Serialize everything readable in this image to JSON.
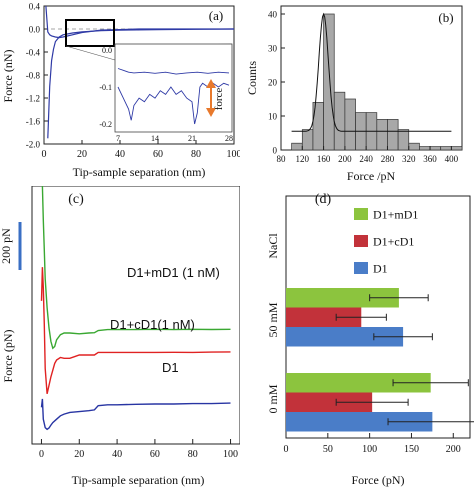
{
  "chart_data": [
    {
      "panel": "(a)",
      "type": "line",
      "xlabel": "Tip-sample separation (nm)",
      "ylabel": "Force (nN)",
      "xlim": [
        0,
        100
      ],
      "ylim": [
        -2.0,
        0.4
      ],
      "xticks": [
        0,
        20,
        40,
        60,
        80,
        100
      ],
      "yticks": [
        -2.0,
        -1.6,
        -1.2,
        -0.8,
        -0.4,
        0.0,
        0.4
      ],
      "ytick_labels": [
        "-2.0",
        "-1.6",
        "-1.2",
        "-0.8",
        "-0.4",
        "0.0",
        "0.4"
      ],
      "series": [
        {
          "x": [
            2,
            3,
            4,
            5,
            6,
            8,
            10,
            15,
            20,
            30,
            40,
            60,
            80,
            100
          ],
          "y": [
            -1.9,
            -1.0,
            -0.55,
            -0.35,
            -0.22,
            -0.14,
            -0.1,
            -0.07,
            -0.05,
            -0.03,
            -0.02,
            -0.01,
            -0.005,
            0.0
          ]
        },
        {
          "x": [
            1,
            2,
            3,
            4,
            6,
            8,
            10,
            15,
            20,
            30,
            50,
            100
          ],
          "y": [
            0.4,
            -0.05,
            -0.1,
            -0.12,
            -0.14,
            -0.15,
            -0.14,
            -0.1,
            -0.06,
            -0.02,
            0.0,
            0.0
          ]
        }
      ],
      "inset": {
        "xlim": [
          7,
          28
        ],
        "ylim": [
          -0.2,
          0.0
        ],
        "xticks": [
          7,
          14,
          21,
          28
        ],
        "yticks": [
          0.0,
          -0.1,
          -0.2
        ],
        "ytick_labels": [
          "0.0",
          "-0.1",
          "-0.2"
        ],
        "annotation": "force",
        "series": [
          {
            "x": [
              7,
              8,
              9,
              10,
              12,
              14,
              16,
              18,
              20,
              22,
              24,
              26,
              28
            ],
            "y": [
              -0.05,
              -0.055,
              -0.06,
              -0.062,
              -0.06,
              -0.063,
              -0.06,
              -0.065,
              -0.062,
              -0.06,
              -0.063,
              -0.06,
              -0.062
            ]
          },
          {
            "x": [
              7,
              8,
              9,
              9.5,
              10,
              11,
              12,
              13,
              14,
              15,
              16,
              17,
              18,
              19,
              20,
              21,
              21.5,
              22,
              22.5,
              23,
              24,
              25,
              26,
              27,
              28
            ],
            "y": [
              -0.1,
              -0.13,
              -0.16,
              -0.19,
              -0.15,
              -0.13,
              -0.14,
              -0.12,
              -0.13,
              -0.11,
              -0.12,
              -0.1,
              -0.12,
              -0.11,
              -0.13,
              -0.14,
              -0.2,
              -0.17,
              -0.1,
              -0.09,
              -0.1,
              -0.09,
              -0.1,
              -0.09,
              -0.095
            ]
          }
        ]
      }
    },
    {
      "panel": "(b)",
      "type": "bar",
      "xlabel": "Force /pN",
      "ylabel": "Counts",
      "xlim": [
        80,
        420
      ],
      "ylim": [
        0,
        40
      ],
      "xticks": [
        80,
        120,
        160,
        200,
        240,
        280,
        320,
        360,
        400
      ],
      "yticks": [
        0,
        10,
        20,
        30,
        40
      ],
      "bin_width": 20,
      "bin_starts": [
        100,
        120,
        140,
        160,
        180,
        200,
        220,
        240,
        260,
        280,
        300,
        320,
        340,
        360,
        380,
        400
      ],
      "values": [
        2,
        6,
        14,
        40,
        17,
        15,
        11,
        11,
        9,
        9,
        6,
        2,
        1,
        1,
        1,
        1
      ],
      "fit": {
        "center": 160,
        "sigma": 9,
        "amplitude": 34.5,
        "baseline": 5.5
      }
    },
    {
      "panel": "(c)",
      "type": "line",
      "xlabel": "Tip-sample separation (nm)",
      "ylabel": "Force (pN)",
      "xlim": [
        -5,
        105
      ],
      "xticks": [
        0,
        20,
        40,
        60,
        80,
        100
      ],
      "scale_bar": "200 pN",
      "series": [
        {
          "name": "D1+mD1 (1 nM)",
          "color": "#3aa832",
          "x": [
            0.5,
            1,
            1.5,
            2,
            3,
            4,
            5,
            6,
            7,
            8,
            10,
            12,
            15,
            20,
            25,
            28,
            30,
            35,
            40,
            50,
            60,
            70,
            80,
            90,
            100
          ],
          "y": [
            1200,
            1000,
            820,
            650,
            480,
            360,
            280,
            240,
            250,
            290,
            320,
            330,
            330,
            325,
            330,
            332,
            345,
            350,
            350,
            350,
            352,
            350,
            352,
            351,
            352
          ]
        },
        {
          "name": "D1+cD1(1 nM)",
          "color": "#e02222",
          "x": [
            0,
            0.5,
            1,
            1.5,
            2,
            3,
            4,
            5,
            6,
            7,
            8,
            10,
            12,
            15,
            18,
            20,
            25,
            28,
            30,
            35,
            40,
            50,
            60,
            70,
            80,
            90,
            100
          ],
          "y": [
            520,
            720,
            600,
            380,
            120,
            -30,
            20,
            70,
            110,
            150,
            170,
            185,
            180,
            180,
            192,
            200,
            200,
            200,
            215,
            215,
            215,
            215,
            215,
            216,
            215,
            217,
            218
          ]
        },
        {
          "name": "D1",
          "color": "#2835a3",
          "x": [
            0,
            0.5,
            1,
            2,
            3,
            4,
            5,
            6,
            8,
            10,
            12,
            15,
            20,
            25,
            28,
            30,
            35,
            40,
            50,
            60,
            70,
            80,
            90,
            100
          ],
          "y": [
            -110,
            -60,
            -180,
            -230,
            -240,
            -232,
            -215,
            -200,
            -180,
            -160,
            -150,
            -140,
            -135,
            -130,
            -125,
            -100,
            -95,
            -95,
            -92,
            -90,
            -90,
            -88,
            -88,
            -85
          ]
        }
      ]
    },
    {
      "panel": "(d)",
      "type": "bar",
      "orientation": "horizontal",
      "xlabel": "Force (pN)",
      "ylabel": "",
      "xlim": [
        0,
        220
      ],
      "xticks": [
        0,
        50,
        100,
        150,
        200
      ],
      "group_labels": [
        "0 mM",
        "50 mM",
        "NaCl"
      ],
      "categories": [
        "0 mM",
        "50 mM"
      ],
      "series": [
        {
          "name": "D1+mD1",
          "color": "#8cc43e",
          "values": [
            173,
            135
          ],
          "errors": [
            45,
            35
          ]
        },
        {
          "name": "D1+cD1",
          "color": "#c2323a",
          "values": [
            103,
            90
          ],
          "errors": [
            43,
            30
          ]
        },
        {
          "name": "D1",
          "color": "#4a7dc8",
          "values": [
            175,
            140
          ],
          "errors": [
            53,
            35
          ]
        }
      ]
    }
  ]
}
